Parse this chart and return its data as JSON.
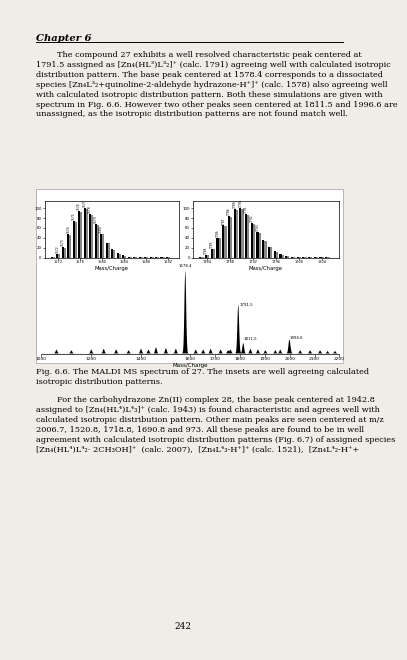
{
  "background_color": "#f0ede8",
  "chapter_header": "Chapter 6",
  "fig_caption": "Fig. 6.6. The MALDI MS spectrum of 27. The insets are well agreeing calculated\nisotropic distribution patterns.",
  "page_number": "242",
  "para1_lines": [
    "        The compound 27 exhibits a well resolved characteristic peak centered at",
    "1791.5 assigned as [Zn₄(HL³)L³₂]⁺ (calc. 1791) agreeing well with calculated isotropic",
    "distribution pattern. The base peak centered at 1578.4 corresponds to a dissociated",
    "species [Zn₄L³₂+quinoline-2-aldehyde hydrazone-H⁺]⁺ (calc. 1578) also agreeing well",
    "with calculated isotropic distribution pattern. Both these simulations are given with",
    "spectrum in Fig. 6.6. However two other peaks seen centered at 1811.5 and 1996.6 are",
    "unassigned, as the isotropic distribution patterns are not found match well."
  ],
  "para2_lines": [
    "        For the carbohydrazone Zn(II) complex 28, the base peak centered at 1942.8",
    "assigned to [Zn₄(HL⁴)L⁴₃]⁺ (calc. 1943) is found characteristic and agrees well with",
    "calculated isotropic distribution pattern. Other main peaks are seen centered at m/z",
    "2006.7, 1520.8, 1718.8, 1690.8 and 973. All these peaks are found to be in well",
    "agreement with calculated isotropic distribution patterns (Fig. 6.7) of assigned species",
    "[Zn₄(HL⁴)L⁴₂· 2CH₃OH]⁺  (calc. 2007),  [Zn₄L⁴₃-H⁺]⁺ (calc. 1521),  [Zn₄L⁴₂-H⁺+"
  ]
}
